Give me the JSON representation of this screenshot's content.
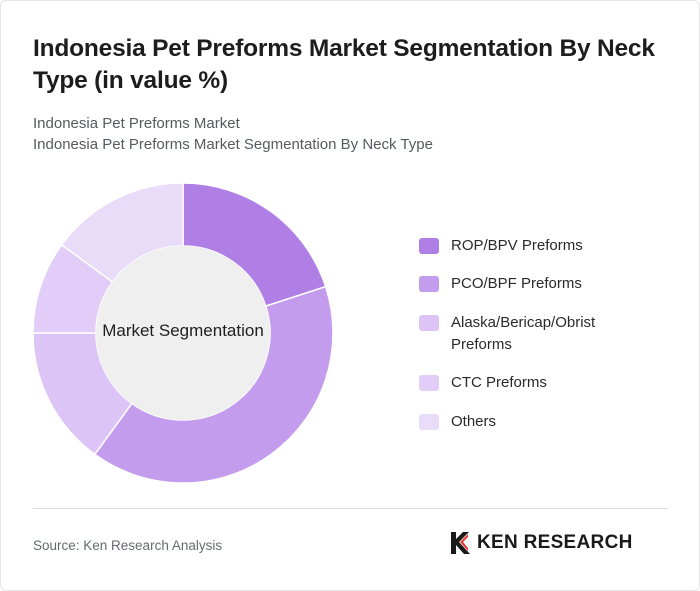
{
  "title": "Indonesia Pet Preforms Market Segmentation By Neck Type (in value %)",
  "subtitle1": "Indonesia Pet Preforms Market",
  "subtitle2": "Indonesia Pet Preforms Market Segmentation By Neck Type",
  "center_label": "Market Segmentation",
  "source": "Source: Ken Research Analysis",
  "brand": "KEN RESEARCH",
  "logo_icon": "ken-research-logo-icon",
  "chart_data": {
    "type": "pie",
    "donut": true,
    "legend_position": "right",
    "categories": [
      "ROP/BPV Preforms",
      "PCO/BPF Preforms",
      "Alaska/Bericap/Obrist Preforms",
      "CTC Preforms",
      "Others"
    ],
    "values": [
      20,
      40,
      15,
      10,
      15
    ],
    "colors": [
      "#b07fe6",
      "#c49cee",
      "#dcc4f6",
      "#e1cdf7",
      "#e9dcf8"
    ]
  }
}
